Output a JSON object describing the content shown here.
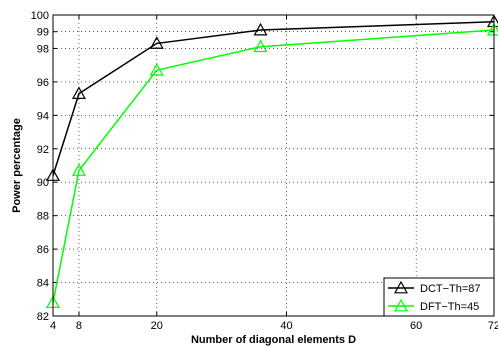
{
  "chart_data": {
    "type": "line",
    "xlabel": "Number of diagonal elements D",
    "ylabel": "Power percentage",
    "xlim": [
      4,
      72
    ],
    "ylim": [
      82,
      100
    ],
    "x_ticks": [
      4,
      8,
      20,
      40,
      60,
      72
    ],
    "x_tick_labels": [
      "4",
      "8",
      "20",
      "40",
      "60",
      "72"
    ],
    "y_ticks": [
      82,
      84,
      86,
      88,
      90,
      92,
      94,
      96,
      98,
      99,
      100
    ],
    "y_tick_labels": [
      "82",
      "84",
      "86",
      "88",
      "90",
      "92",
      "94",
      "96",
      "98",
      "99",
      "100"
    ],
    "grid": true,
    "legend_position": "bottom-right",
    "series": [
      {
        "name": "DCT−Th=87",
        "color": "#000000",
        "marker": "triangle",
        "x": [
          4,
          8,
          20,
          36,
          72
        ],
        "y": [
          90.4,
          95.3,
          98.3,
          99.1,
          99.6
        ]
      },
      {
        "name": "DFT−Th=45",
        "color": "#00ff00",
        "marker": "triangle",
        "x": [
          4,
          8,
          20,
          36,
          72
        ],
        "y": [
          82.8,
          90.7,
          96.7,
          98.1,
          99.1
        ]
      }
    ]
  }
}
